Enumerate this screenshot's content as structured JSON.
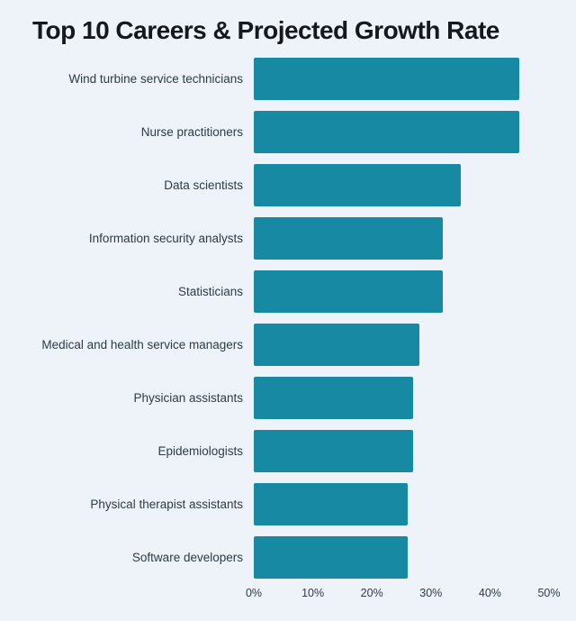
{
  "title": "Top 10 Careers & Projected Growth Rate",
  "colors": {
    "bar": "#1789a3",
    "background": "#edf3f8",
    "title_text": "#15181c",
    "label_text": "#2e3a44"
  },
  "chart_data": {
    "type": "bar",
    "orientation": "horizontal",
    "title": "Top 10 Careers & Projected Growth Rate",
    "categories": [
      "Wind turbine service technicians",
      "Nurse practitioners",
      "Data scientists",
      "Information security analysts",
      "Statisticians",
      "Medical and health service managers",
      "Physician assistants",
      "Epidemiologists",
      "Physical therapist assistants",
      "Software developers"
    ],
    "values": [
      45,
      45,
      35,
      32,
      32,
      28,
      27,
      27,
      26,
      26
    ],
    "unit": "%",
    "xlabel": "",
    "ylabel": "",
    "xlim": [
      0,
      50
    ],
    "x_tick_labels": [
      "0%",
      "10%",
      "20%",
      "30%",
      "40%",
      "50%"
    ],
    "x_tick_values": [
      0,
      10,
      20,
      30,
      40,
      50
    ],
    "grid": false,
    "legend": false
  }
}
